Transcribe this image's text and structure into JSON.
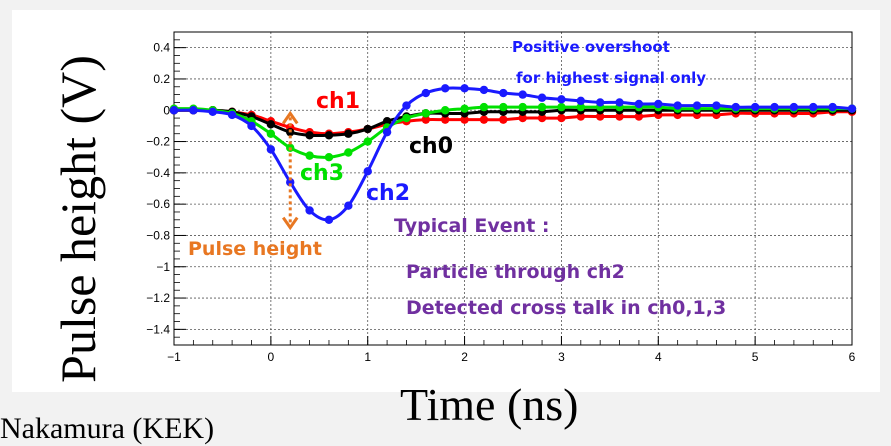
{
  "footer": {
    "text": "Nakamura (KEK)"
  },
  "chart_data": {
    "type": "line",
    "xlabel": "Time (ns)",
    "ylabel": "Pulse height (V)",
    "xlim": [
      -1,
      6
    ],
    "ylim": [
      -1.5,
      0.5
    ],
    "xticks": [
      "-1",
      "0",
      "1",
      "2",
      "3",
      "4",
      "5",
      "6"
    ],
    "yticks": [
      "-1.4",
      "-1.2",
      "-1",
      "-0.8",
      "-0.6",
      "-0.4",
      "-0.2",
      "0",
      "0.2",
      "0.4"
    ],
    "grid": true,
    "series": [
      {
        "name": "ch1",
        "color": "#ff0000",
        "x": [
          -1,
          -0.8,
          -0.6,
          -0.4,
          -0.2,
          0,
          0.2,
          0.4,
          0.6,
          0.8,
          1,
          1.2,
          1.4,
          1.6,
          1.8,
          2,
          2.2,
          2.4,
          2.6,
          2.8,
          3,
          3.2,
          3.4,
          3.6,
          3.8,
          4,
          4.2,
          4.4,
          4.6,
          4.8,
          5,
          5.2,
          5.4,
          5.6,
          5.8,
          6
        ],
        "y": [
          0,
          0,
          0,
          -0.01,
          -0.03,
          -0.07,
          -0.11,
          -0.14,
          -0.15,
          -0.14,
          -0.12,
          -0.09,
          -0.07,
          -0.06,
          -0.06,
          -0.06,
          -0.06,
          -0.06,
          -0.05,
          -0.05,
          -0.05,
          -0.04,
          -0.04,
          -0.04,
          -0.04,
          -0.03,
          -0.03,
          -0.03,
          -0.03,
          -0.02,
          -0.02,
          -0.02,
          -0.02,
          -0.02,
          -0.01,
          -0.01
        ]
      },
      {
        "name": "ch0",
        "color": "#000000",
        "x": [
          -1,
          -0.8,
          -0.6,
          -0.4,
          -0.2,
          0,
          0.2,
          0.4,
          0.6,
          0.8,
          1,
          1.2,
          1.4,
          1.6,
          1.8,
          2,
          2.2,
          2.4,
          2.6,
          2.8,
          3,
          3.2,
          3.4,
          3.6,
          3.8,
          4,
          4.2,
          4.4,
          4.6,
          4.8,
          5,
          5.2,
          5.4,
          5.6,
          5.8,
          6
        ],
        "y": [
          0,
          0,
          0,
          -0.01,
          -0.04,
          -0.09,
          -0.14,
          -0.16,
          -0.16,
          -0.15,
          -0.12,
          -0.07,
          -0.04,
          -0.02,
          -0.02,
          -0.02,
          -0.01,
          -0.01,
          -0.01,
          -0.01,
          0,
          0,
          0,
          0,
          0,
          0,
          0,
          0,
          0,
          0,
          0,
          0,
          0,
          0,
          0,
          0
        ]
      },
      {
        "name": "ch3",
        "color": "#00e000",
        "x": [
          -1,
          -0.8,
          -0.6,
          -0.4,
          -0.2,
          0,
          0.2,
          0.4,
          0.6,
          0.8,
          1,
          1.2,
          1.4,
          1.6,
          1.8,
          2,
          2.2,
          2.4,
          2.6,
          2.8,
          3,
          3.2,
          3.4,
          3.6,
          3.8,
          4,
          4.2,
          4.4,
          4.6,
          4.8,
          5,
          5.2,
          5.4,
          5.6,
          5.8,
          6
        ],
        "y": [
          0.01,
          0.01,
          0,
          -0.02,
          -0.07,
          -0.15,
          -0.24,
          -0.29,
          -0.3,
          -0.27,
          -0.2,
          -0.11,
          -0.05,
          -0.02,
          0,
          0.01,
          0.02,
          0.02,
          0.02,
          0.02,
          0.02,
          0.02,
          0.02,
          0.02,
          0.02,
          0.02,
          0.01,
          0.01,
          0.01,
          0.01,
          0.01,
          0.01,
          0.01,
          0.01,
          0.01,
          0.01
        ]
      },
      {
        "name": "ch2",
        "color": "#1a1aff",
        "x": [
          -1,
          -0.8,
          -0.6,
          -0.4,
          -0.2,
          0,
          0.2,
          0.4,
          0.6,
          0.8,
          1,
          1.2,
          1.4,
          1.6,
          1.8,
          2,
          2.2,
          2.4,
          2.6,
          2.8,
          3,
          3.2,
          3.4,
          3.6,
          3.8,
          4,
          4.2,
          4.4,
          4.6,
          4.8,
          5,
          5.2,
          5.4,
          5.6,
          5.8,
          6
        ],
        "y": [
          0,
          0,
          -0.01,
          -0.03,
          -0.1,
          -0.25,
          -0.46,
          -0.64,
          -0.7,
          -0.61,
          -0.39,
          -0.14,
          0.03,
          0.11,
          0.14,
          0.14,
          0.13,
          0.11,
          0.1,
          0.08,
          0.07,
          0.06,
          0.05,
          0.05,
          0.04,
          0.04,
          0.03,
          0.03,
          0.03,
          0.02,
          0.02,
          0.02,
          0.02,
          0.02,
          0.02,
          0.01
        ]
      }
    ],
    "annotations": {
      "ch1": "ch1",
      "ch0": "ch0",
      "ch3": "ch3",
      "ch2": "ch2",
      "overshoot_line1": "Positive overshoot",
      "overshoot_line2": "for highest signal only",
      "pulse_height": "Pulse height",
      "event_line1": "Typical Event :",
      "event_line2": "Particle through ch2",
      "event_line3": "Detected cross talk in ch0,1,3"
    },
    "annotation_colors": {
      "overshoot": "#1a1aff",
      "pulse_height": "#e87722",
      "event": "#7030a0"
    }
  }
}
